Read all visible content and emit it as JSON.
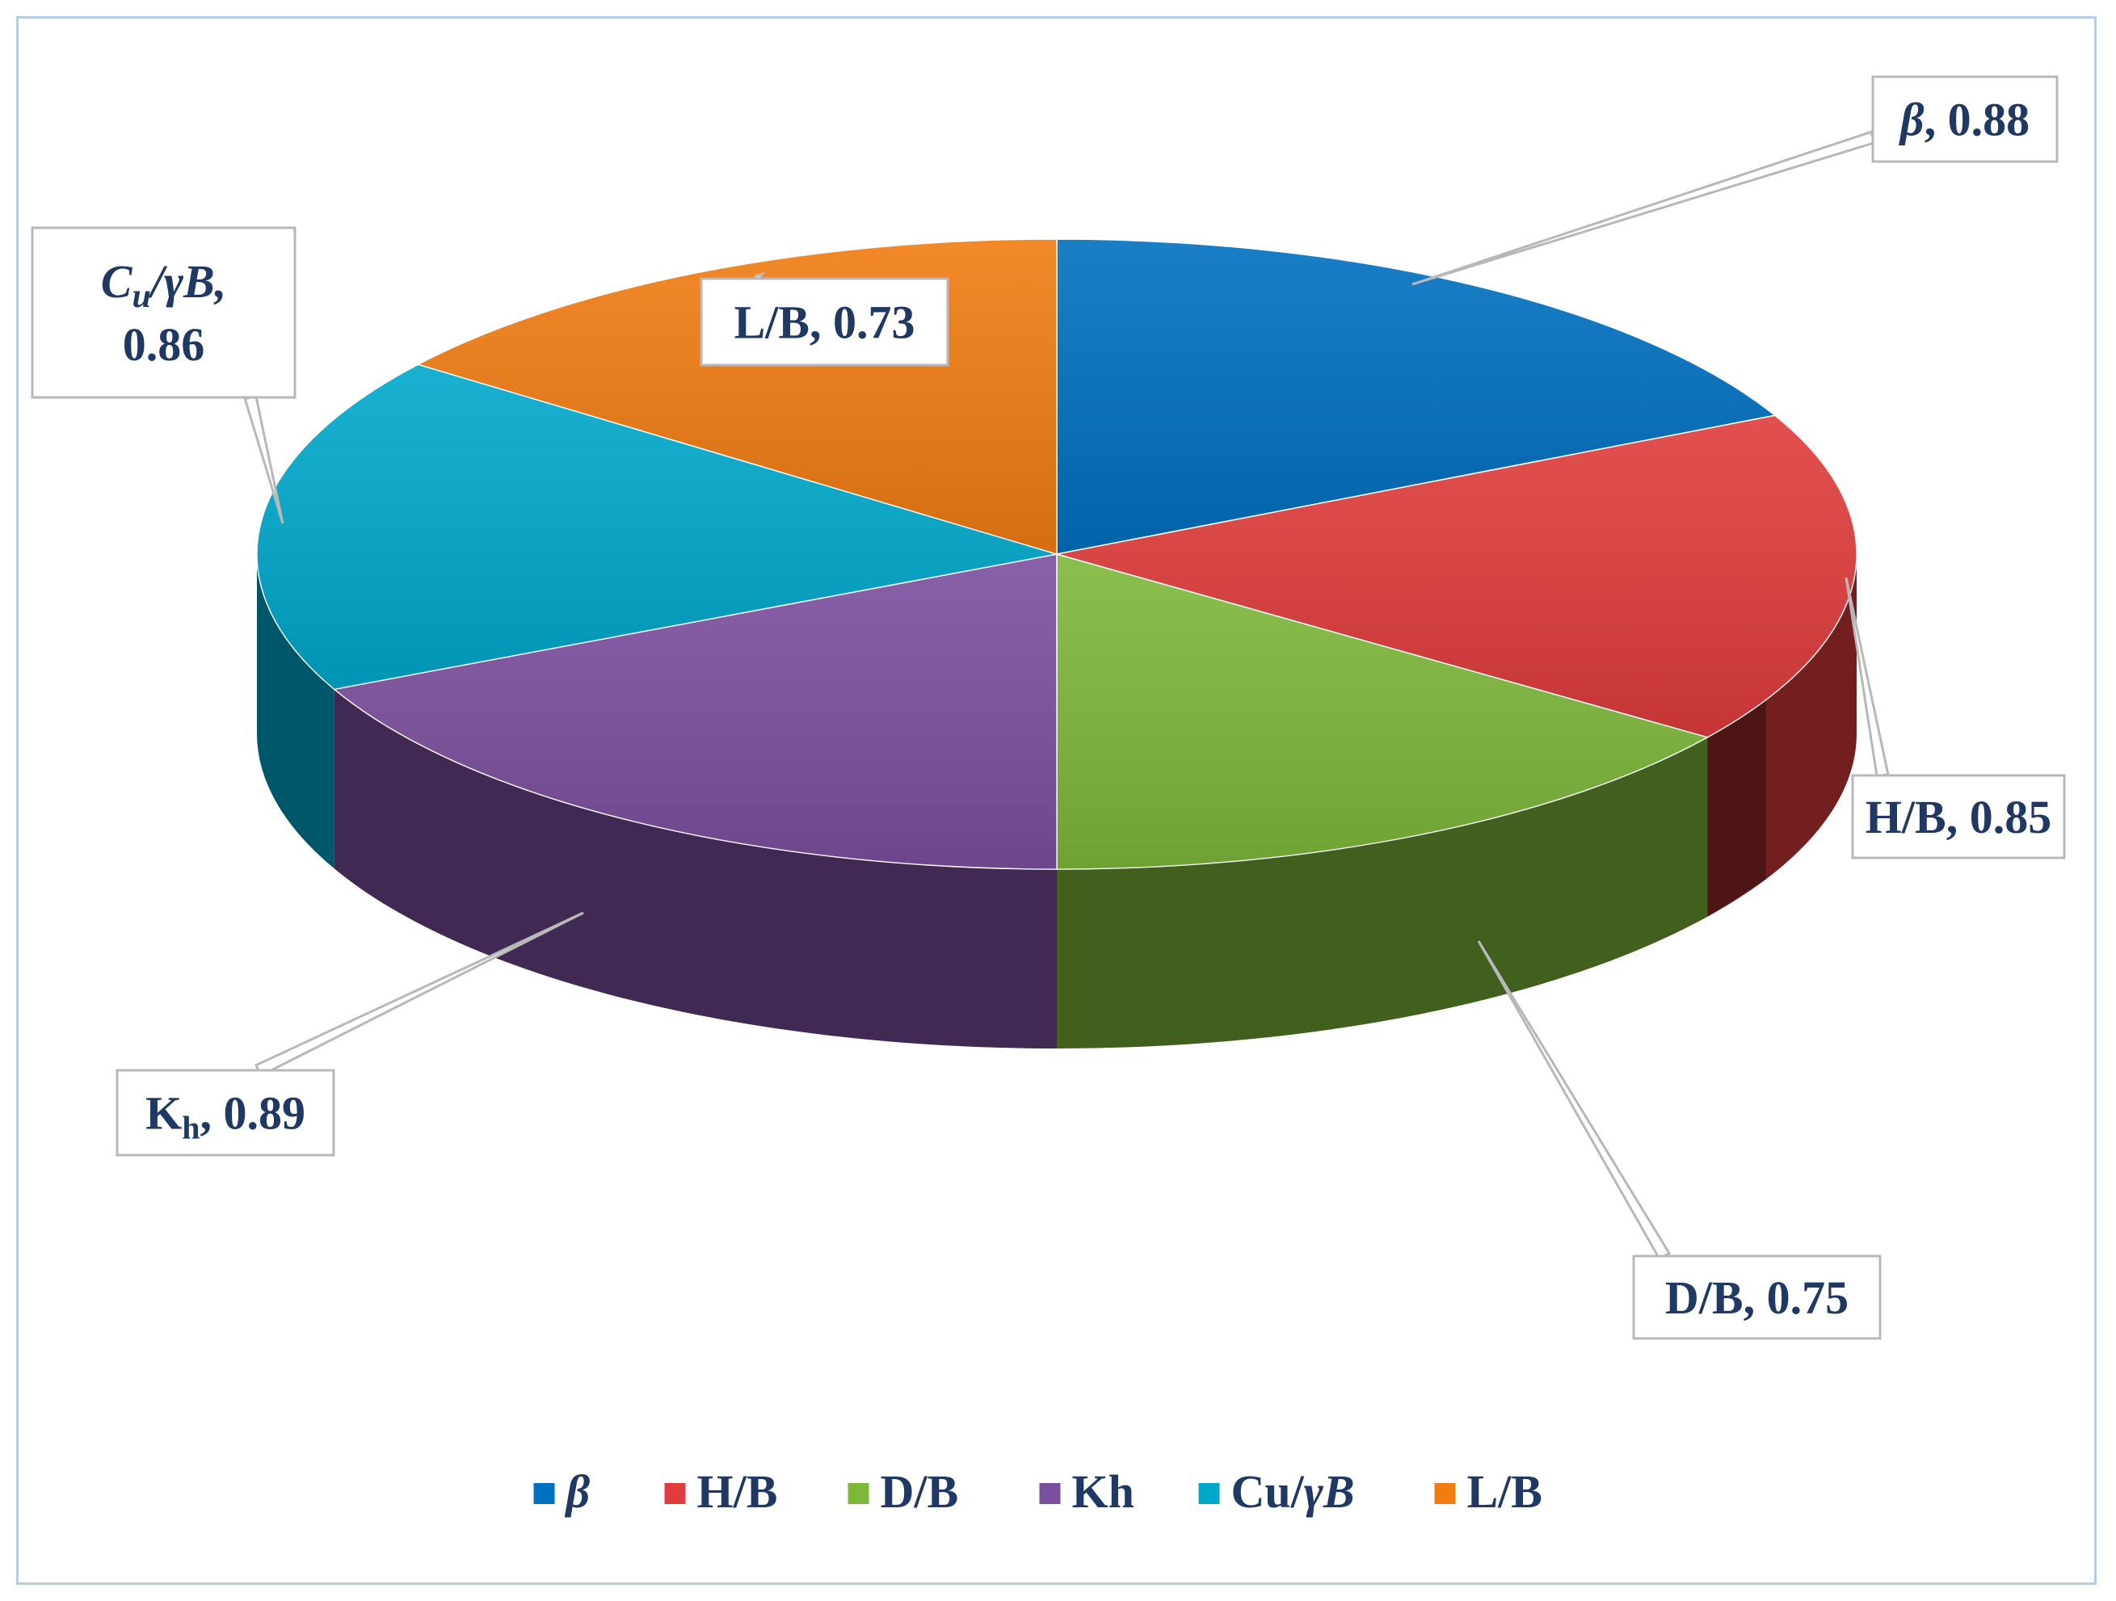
{
  "chart_data": {
    "type": "pie",
    "style": "3d",
    "legend_position": "bottom",
    "slices": [
      {
        "key": "beta",
        "legend": "β",
        "label": "β, 0.88",
        "value": 0.88,
        "color": "#0070c0"
      },
      {
        "key": "hb",
        "legend": "H/B",
        "label": "H/B, 0.85",
        "value": 0.85,
        "color": "#e03c3c"
      },
      {
        "key": "db",
        "legend": "D/B",
        "label": "D/B, 0.75",
        "value": 0.75,
        "color": "#7db83a"
      },
      {
        "key": "kh",
        "legend": "Kh",
        "label": "Kh, 0.89",
        "value": 0.89,
        "color": "#7b4f9e"
      },
      {
        "key": "cu",
        "legend": "Cu/γB",
        "label": "Cu/γB, 0.86",
        "value": 0.86,
        "color": "#00a8cc"
      },
      {
        "key": "lb",
        "legend": "L/B",
        "label": "L/B, 0.73",
        "value": 0.73,
        "color": "#f07c12"
      }
    ]
  }
}
